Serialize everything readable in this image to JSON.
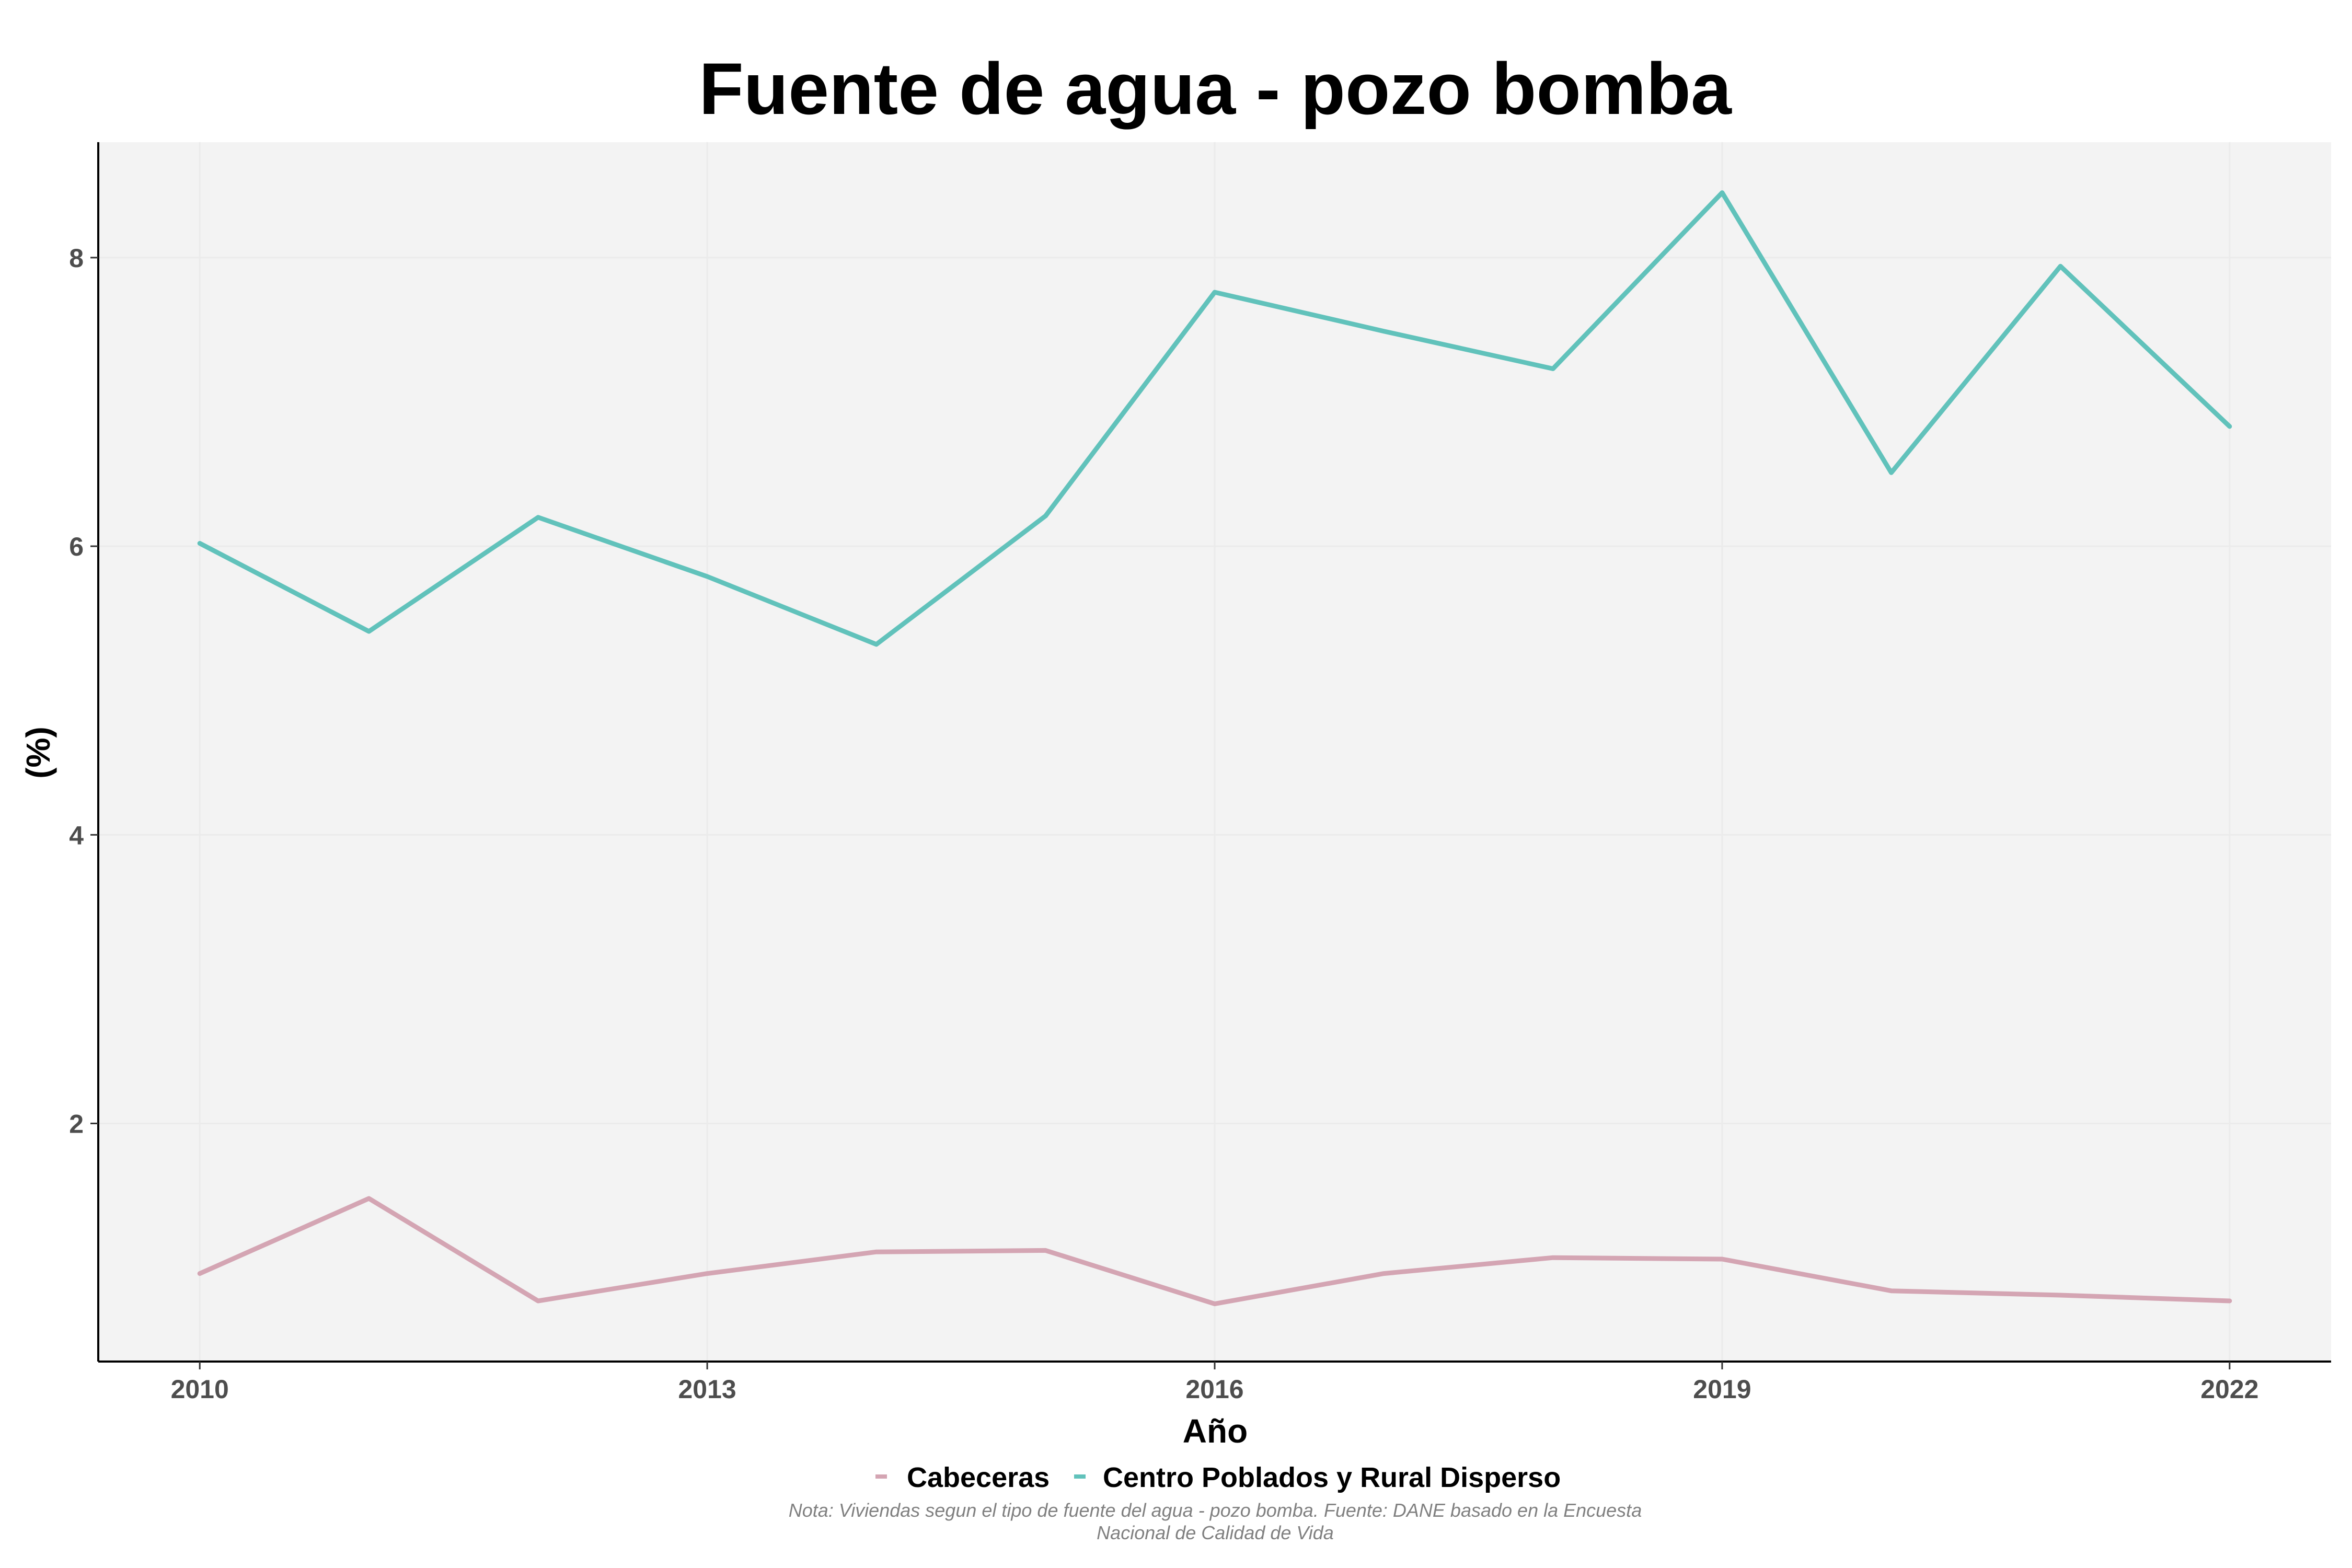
{
  "chart_data": {
    "type": "line",
    "title": "Fuente de agua - pozo bomba",
    "xlabel": "Año",
    "ylabel": "(%)",
    "x": [
      2010,
      2011,
      2012,
      2013,
      2014,
      2015,
      2016,
      2017,
      2018,
      2019,
      2020,
      2021,
      2022
    ],
    "xticks": [
      2010,
      2013,
      2016,
      2019,
      2022
    ],
    "yticks": [
      2,
      4,
      6,
      8
    ],
    "xlim": [
      2009.4,
      2022.6
    ],
    "ylim": [
      0.35,
      8.8
    ],
    "grid": true,
    "legend_position": "bottom",
    "series": [
      {
        "name": "Cabeceras",
        "color": "#d4a5b3",
        "values": [
          0.96,
          1.48,
          0.77,
          0.96,
          1.11,
          1.12,
          0.75,
          0.96,
          1.07,
          1.06,
          0.84,
          0.81,
          0.77
        ]
      },
      {
        "name": "Centro Poblados y Rural Disperso",
        "color": "#61c2bb",
        "values": [
          6.02,
          5.41,
          6.2,
          5.79,
          5.32,
          6.21,
          7.76,
          7.49,
          7.23,
          8.45,
          6.51,
          7.94,
          6.83
        ]
      }
    ],
    "caption_line1": "Nota: Viviendas segun el tipo de fuente del agua - pozo bomba. Fuente: DANE basado en la Encuesta",
    "caption_line2": "Nacional de Calidad de Vida"
  }
}
